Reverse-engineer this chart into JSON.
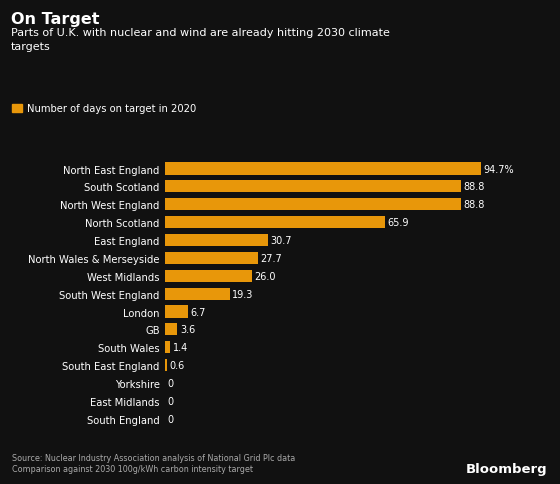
{
  "title": "On Target",
  "subtitle": "Parts of U.K. with nuclear and wind are already hitting 2030 climate\ntargets",
  "legend_label": "Number of days on target in 2020",
  "categories": [
    "North East England",
    "South Scotland",
    "North West England",
    "North Scotland",
    "East England",
    "North Wales & Merseyside",
    "West Midlands",
    "South West England",
    "London",
    "GB",
    "South Wales",
    "South East England",
    "Yorkshire",
    "East Midlands",
    "South England"
  ],
  "values": [
    94.7,
    88.8,
    88.8,
    65.9,
    30.7,
    27.7,
    26.0,
    19.3,
    6.7,
    3.6,
    1.4,
    0.6,
    0,
    0,
    0
  ],
  "labels": [
    "94.7%",
    "88.8",
    "88.8",
    "65.9",
    "30.7",
    "27.7",
    "26.0",
    "19.3",
    "6.7",
    "3.6",
    "1.4",
    "0.6",
    "0",
    "0",
    "0"
  ],
  "bar_color": "#E8970A",
  "background_color": "#111111",
  "text_color": "#FFFFFF",
  "source_text": "Source: Nuclear Industry Association analysis of National Grid Plc data\nComparison against 2030 100g/kWh carbon intensity target",
  "bloomberg_text": "Bloomberg",
  "xlim": [
    0,
    105
  ]
}
